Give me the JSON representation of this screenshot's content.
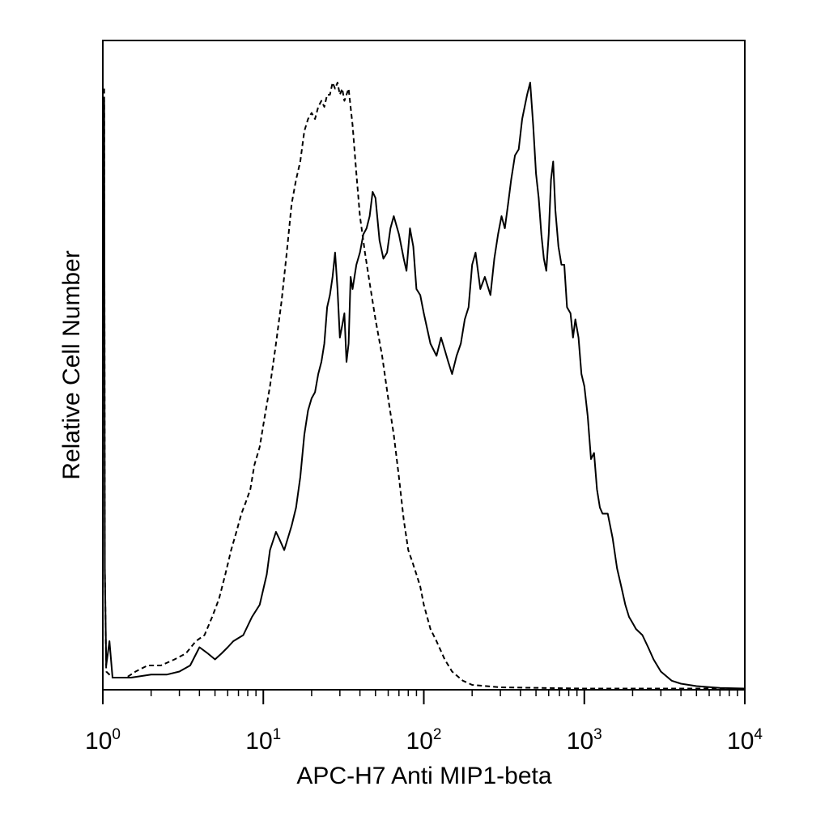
{
  "chart_data": {
    "type": "line",
    "title": "",
    "xlabel": "APC-H7 Anti MIP1-beta",
    "ylabel": "Relative Cell Number",
    "xscale": "log",
    "xlim": [
      1,
      10000
    ],
    "ylim": [
      0,
      100
    ],
    "grid": false,
    "legend": "none",
    "x_ticks": [
      {
        "value": 1,
        "base": "10",
        "exp": "0"
      },
      {
        "value": 10,
        "base": "10",
        "exp": "1"
      },
      {
        "value": 100,
        "base": "10",
        "exp": "2"
      },
      {
        "value": 1000,
        "base": "10",
        "exp": "3"
      },
      {
        "value": 10000,
        "base": "10",
        "exp": "4"
      }
    ],
    "series": [
      {
        "style": "dashed",
        "color": "#000000",
        "points": [
          [
            1.02,
            99
          ],
          [
            1.03,
            20
          ],
          [
            1.05,
            3
          ],
          [
            1.15,
            2
          ],
          [
            1.4,
            2
          ],
          [
            1.6,
            3
          ],
          [
            1.9,
            4
          ],
          [
            2.3,
            4
          ],
          [
            2.8,
            5
          ],
          [
            3.3,
            6
          ],
          [
            3.8,
            8
          ],
          [
            4.3,
            9
          ],
          [
            4.8,
            12
          ],
          [
            5.3,
            15
          ],
          [
            5.8,
            19
          ],
          [
            6.3,
            23
          ],
          [
            6.8,
            26
          ],
          [
            7.3,
            29
          ],
          [
            7.8,
            31
          ],
          [
            8.3,
            33
          ],
          [
            8.8,
            37
          ],
          [
            9.5,
            40
          ],
          [
            10.2,
            45
          ],
          [
            11,
            50
          ],
          [
            12,
            57
          ],
          [
            13,
            64
          ],
          [
            14,
            72
          ],
          [
            15,
            80
          ],
          [
            16,
            84
          ],
          [
            17,
            87
          ],
          [
            18,
            92
          ],
          [
            19,
            94
          ],
          [
            20,
            95
          ],
          [
            21,
            94
          ],
          [
            22,
            96
          ],
          [
            23,
            97
          ],
          [
            24,
            96
          ],
          [
            25,
            98
          ],
          [
            26,
            98
          ],
          [
            27,
            100
          ],
          [
            28,
            99
          ],
          [
            29,
            100
          ],
          [
            30,
            98
          ],
          [
            31,
            99
          ],
          [
            32,
            97
          ],
          [
            34,
            99
          ],
          [
            36,
            93
          ],
          [
            38,
            85
          ],
          [
            40,
            78
          ],
          [
            43,
            72
          ],
          [
            46,
            67
          ],
          [
            50,
            61
          ],
          [
            55,
            55
          ],
          [
            60,
            48
          ],
          [
            65,
            42
          ],
          [
            70,
            35
          ],
          [
            75,
            28
          ],
          [
            80,
            23
          ],
          [
            85,
            21
          ],
          [
            90,
            19
          ],
          [
            95,
            17
          ],
          [
            100,
            14
          ],
          [
            110,
            10
          ],
          [
            120,
            8
          ],
          [
            135,
            5
          ],
          [
            150,
            3
          ],
          [
            175,
            1.5
          ],
          [
            200,
            0.8
          ],
          [
            300,
            0.4
          ],
          [
            1000,
            0.2
          ],
          [
            10000,
            0.2
          ]
        ]
      },
      {
        "style": "solid",
        "color": "#000000",
        "points": [
          [
            1.02,
            97
          ],
          [
            1.03,
            20
          ],
          [
            1.05,
            4
          ],
          [
            1.1,
            8
          ],
          [
            1.15,
            2
          ],
          [
            1.5,
            2
          ],
          [
            2,
            2.5
          ],
          [
            2.5,
            2.5
          ],
          [
            3,
            3
          ],
          [
            3.5,
            4
          ],
          [
            4,
            7
          ],
          [
            4.5,
            6
          ],
          [
            5,
            5
          ],
          [
            5.5,
            6
          ],
          [
            6,
            7
          ],
          [
            6.5,
            8
          ],
          [
            7.5,
            9
          ],
          [
            8.5,
            12
          ],
          [
            9.5,
            14
          ],
          [
            10.5,
            19
          ],
          [
            11,
            23
          ],
          [
            12,
            26
          ],
          [
            12.5,
            25
          ],
          [
            13.5,
            23
          ],
          [
            15,
            27
          ],
          [
            16,
            30
          ],
          [
            17,
            35
          ],
          [
            18,
            42
          ],
          [
            19,
            46
          ],
          [
            20,
            48
          ],
          [
            21,
            49
          ],
          [
            22,
            52
          ],
          [
            23,
            54
          ],
          [
            24,
            57
          ],
          [
            25,
            63
          ],
          [
            26,
            65
          ],
          [
            27,
            68
          ],
          [
            28,
            72
          ],
          [
            29,
            66
          ],
          [
            30,
            58
          ],
          [
            31,
            60
          ],
          [
            32,
            62
          ],
          [
            33,
            54
          ],
          [
            34,
            57
          ],
          [
            35,
            68
          ],
          [
            36,
            66
          ],
          [
            38,
            70
          ],
          [
            40,
            72
          ],
          [
            42,
            75
          ],
          [
            44,
            76
          ],
          [
            46,
            78
          ],
          [
            48,
            82
          ],
          [
            50,
            81
          ],
          [
            53,
            74
          ],
          [
            56,
            71
          ],
          [
            59,
            72
          ],
          [
            62,
            76
          ],
          [
            65,
            78
          ],
          [
            70,
            75
          ],
          [
            75,
            71
          ],
          [
            78,
            69
          ],
          [
            82,
            76
          ],
          [
            86,
            73
          ],
          [
            90,
            66
          ],
          [
            95,
            65
          ],
          [
            100,
            62
          ],
          [
            110,
            57
          ],
          [
            120,
            55
          ],
          [
            128,
            58
          ],
          [
            135,
            56
          ],
          [
            142,
            54
          ],
          [
            150,
            52
          ],
          [
            160,
            55
          ],
          [
            170,
            57
          ],
          [
            180,
            61
          ],
          [
            190,
            63
          ],
          [
            200,
            70
          ],
          [
            210,
            72
          ],
          [
            225,
            66
          ],
          [
            240,
            68
          ],
          [
            260,
            65
          ],
          [
            275,
            71
          ],
          [
            290,
            75
          ],
          [
            305,
            78
          ],
          [
            320,
            76
          ],
          [
            335,
            80
          ],
          [
            350,
            84
          ],
          [
            370,
            88
          ],
          [
            390,
            89
          ],
          [
            410,
            94
          ],
          [
            440,
            98
          ],
          [
            460,
            100
          ],
          [
            480,
            93
          ],
          [
            500,
            85
          ],
          [
            520,
            81
          ],
          [
            540,
            75
          ],
          [
            560,
            71
          ],
          [
            580,
            69
          ],
          [
            600,
            75
          ],
          [
            620,
            84
          ],
          [
            640,
            87
          ],
          [
            660,
            79
          ],
          [
            690,
            73
          ],
          [
            720,
            70
          ],
          [
            750,
            70
          ],
          [
            780,
            63
          ],
          [
            820,
            62
          ],
          [
            850,
            58
          ],
          [
            880,
            61
          ],
          [
            920,
            58
          ],
          [
            960,
            52
          ],
          [
            1000,
            50
          ],
          [
            1050,
            45
          ],
          [
            1100,
            38
          ],
          [
            1150,
            39
          ],
          [
            1200,
            33
          ],
          [
            1250,
            30
          ],
          [
            1300,
            29
          ],
          [
            1400,
            29
          ],
          [
            1500,
            25
          ],
          [
            1600,
            20
          ],
          [
            1700,
            17
          ],
          [
            1800,
            14
          ],
          [
            1900,
            12
          ],
          [
            2000,
            11
          ],
          [
            2100,
            10
          ],
          [
            2300,
            9
          ],
          [
            2500,
            7
          ],
          [
            2700,
            5
          ],
          [
            3000,
            3
          ],
          [
            3500,
            1.5
          ],
          [
            4000,
            1
          ],
          [
            5000,
            0.6
          ],
          [
            7000,
            0.3
          ],
          [
            10000,
            0.2
          ]
        ]
      }
    ]
  }
}
